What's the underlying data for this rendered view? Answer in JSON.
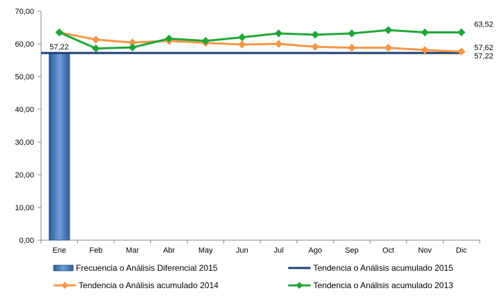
{
  "chart_data": {
    "type": "bar+line",
    "categories": [
      "Ene",
      "Feb",
      "Mar",
      "Abr",
      "May",
      "Jun",
      "Jul",
      "Ago",
      "Sep",
      "Oct",
      "Nov",
      "Dic"
    ],
    "ylim": [
      0,
      70
    ],
    "yticks": [
      "0,00",
      "10,00",
      "20,00",
      "30,00",
      "40,00",
      "50,00",
      "60,00",
      "70,00"
    ],
    "grid": false,
    "legend_position": "bottom",
    "series": [
      {
        "name": "Frecuencia o Análisis Diferencial 2015",
        "kind": "bar",
        "color": "#4a7ebb",
        "values": [
          57.22,
          null,
          null,
          null,
          null,
          null,
          null,
          null,
          null,
          null,
          null,
          null
        ],
        "data_labels": [
          "57,22"
        ]
      },
      {
        "name": "Tendencia o Análisis acumulado 2015",
        "kind": "line",
        "color": "#1f3d73",
        "values": [
          57.22,
          57.22,
          57.22,
          57.22,
          57.22,
          57.22,
          57.22,
          57.22,
          57.22,
          57.22,
          57.22,
          57.22
        ],
        "end_label": "57,22"
      },
      {
        "name": "Tendencia o Análisis acumulado 2014",
        "kind": "line",
        "color": "#f79646",
        "marker": "diamond",
        "values": [
          63.5,
          61.3,
          60.4,
          60.9,
          60.3,
          59.8,
          60.0,
          59.1,
          58.8,
          58.8,
          58.1,
          57.62
        ],
        "end_label": "57,62"
      },
      {
        "name": "Tendencia o Análisis acumulado 2013",
        "kind": "line",
        "color": "#1fa637",
        "marker": "diamond",
        "values": [
          63.5,
          58.6,
          58.9,
          61.6,
          60.9,
          62.0,
          63.2,
          62.8,
          63.2,
          64.2,
          63.5,
          63.52
        ],
        "end_label": "63,52"
      }
    ]
  }
}
